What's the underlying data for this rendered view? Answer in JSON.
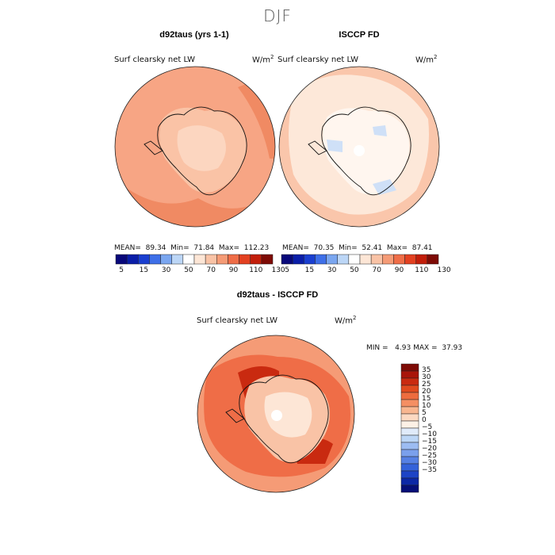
{
  "title": "DJF",
  "chart_data": [
    {
      "type": "heatmap",
      "projection": "south-polar-stereographic",
      "title": "d92taus (yrs 1-1)",
      "variable": "Surf clearsky net LW",
      "units_base": "W/m",
      "units_exp": "2",
      "stats": {
        "mean_label": "MEAN=",
        "mean": "89.34",
        "min_label": "Min=",
        "min": "71.84",
        "max_label": "Max=",
        "max": "112.23"
      },
      "colorbar": {
        "orientation": "horizontal",
        "colors": [
          "#08087a",
          "#0a1ea8",
          "#1a3fd0",
          "#3e6fe8",
          "#7aa6f0",
          "#bcd6f6",
          "#ffffff",
          "#fde6d6",
          "#f9c3a6",
          "#f59b76",
          "#ef6d47",
          "#e34121",
          "#c21e0a",
          "#7e0b06"
        ],
        "tick_labels": [
          "5",
          "15",
          "30",
          "50",
          "70",
          "90",
          "110",
          "130"
        ]
      }
    },
    {
      "type": "heatmap",
      "projection": "south-polar-stereographic",
      "title": "ISCCP FD",
      "variable": "Surf clearsky net LW",
      "units_base": "W/m",
      "units_exp": "2",
      "stats": {
        "mean_label": "MEAN=",
        "mean": "70.35",
        "min_label": "Min=",
        "min": "52.41",
        "max_label": "Max=",
        "max": "87.41"
      },
      "colorbar": {
        "orientation": "horizontal",
        "colors": [
          "#08087a",
          "#0a1ea8",
          "#1a3fd0",
          "#3e6fe8",
          "#7aa6f0",
          "#bcd6f6",
          "#ffffff",
          "#fde6d6",
          "#f9c3a6",
          "#f59b76",
          "#ef6d47",
          "#e34121",
          "#c21e0a",
          "#7e0b06"
        ],
        "tick_labels": [
          "5",
          "15",
          "30",
          "50",
          "70",
          "90",
          "110",
          "130"
        ]
      }
    },
    {
      "type": "heatmap",
      "projection": "south-polar-stereographic",
      "title": "d92taus - ISCCP FD",
      "variable": "Surf clearsky net LW",
      "units_base": "W/m",
      "units_exp": "2",
      "stats": {
        "min_label": "MIN =",
        "min": "4.93",
        "max_label": "MAX =",
        "max": "37.93"
      },
      "colorbar": {
        "orientation": "vertical",
        "colors": [
          "#7e0b06",
          "#a8150a",
          "#c92a10",
          "#e04a1e",
          "#ee6c3e",
          "#f48f63",
          "#f8b690",
          "#fcd9c2",
          "#fdf1e6",
          "#e0ebfa",
          "#bcd6f6",
          "#9cbcf2",
          "#7aa0ec",
          "#5681e4",
          "#3462da",
          "#1d44c6",
          "#0c28a6",
          "#050f78"
        ],
        "tick_labels": [
          "35",
          "30",
          "25",
          "20",
          "15",
          "10",
          "5",
          "0",
          "−5",
          "−10",
          "−15",
          "−20",
          "−25",
          "−30",
          "−35"
        ]
      }
    }
  ]
}
